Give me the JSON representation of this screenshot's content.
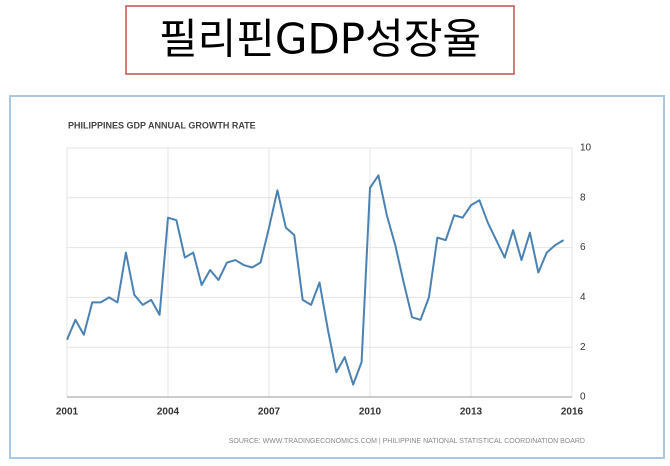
{
  "chart_data": {
    "type": "line",
    "title": "필리핀GDP성장율",
    "subtitle": "PHILIPPINES GDP ANNUAL GROWTH RATE",
    "source": "SOURCE: WWW.TRADINGECONOMICS.COM | PHILIPPINE NATIONAL STATISTICAL COORDINATION BOARD",
    "x": [
      2001,
      2001.25,
      2001.5,
      2001.75,
      2002,
      2002.25,
      2002.5,
      2002.75,
      2003,
      2003.25,
      2003.5,
      2003.75,
      2004,
      2004.25,
      2004.5,
      2004.75,
      2005,
      2005.25,
      2005.5,
      2005.75,
      2006,
      2006.25,
      2006.5,
      2006.75,
      2007,
      2007.25,
      2007.5,
      2007.75,
      2008,
      2008.25,
      2008.5,
      2008.75,
      2009,
      2009.25,
      2009.5,
      2009.75,
      2010,
      2010.25,
      2010.5,
      2010.75,
      2011,
      2011.25,
      2011.5,
      2011.75,
      2012,
      2012.25,
      2012.5,
      2012.75,
      2013,
      2013.25,
      2013.5,
      2013.75,
      2014,
      2014.25,
      2014.5,
      2014.75,
      2015,
      2015.25,
      2015.5,
      2015.75
    ],
    "series": [
      {
        "name": "GDP Annual Growth Rate",
        "color": "#4a82b4",
        "values": [
          2.3,
          3.1,
          2.5,
          3.8,
          3.8,
          4.0,
          3.8,
          5.8,
          4.1,
          3.7,
          3.9,
          3.3,
          7.2,
          7.1,
          5.6,
          5.8,
          4.5,
          5.1,
          4.7,
          5.4,
          5.5,
          5.3,
          5.2,
          5.4,
          6.8,
          8.3,
          6.8,
          6.5,
          3.9,
          3.7,
          4.6,
          2.7,
          1.0,
          1.6,
          0.5,
          1.4,
          8.4,
          8.9,
          7.3,
          6.1,
          4.6,
          3.2,
          3.1,
          4.0,
          6.4,
          6.3,
          7.3,
          7.2,
          7.7,
          7.9,
          7.0,
          6.3,
          5.6,
          6.7,
          5.5,
          6.6,
          5.0,
          5.8,
          6.1,
          6.3
        ]
      }
    ],
    "xlim": [
      2001,
      2016
    ],
    "xticks": [
      2001,
      2004,
      2007,
      2010,
      2013,
      2016
    ],
    "ylim": [
      0,
      10
    ],
    "yticks": [
      0,
      2,
      4,
      6,
      8,
      10
    ],
    "grid": true
  }
}
